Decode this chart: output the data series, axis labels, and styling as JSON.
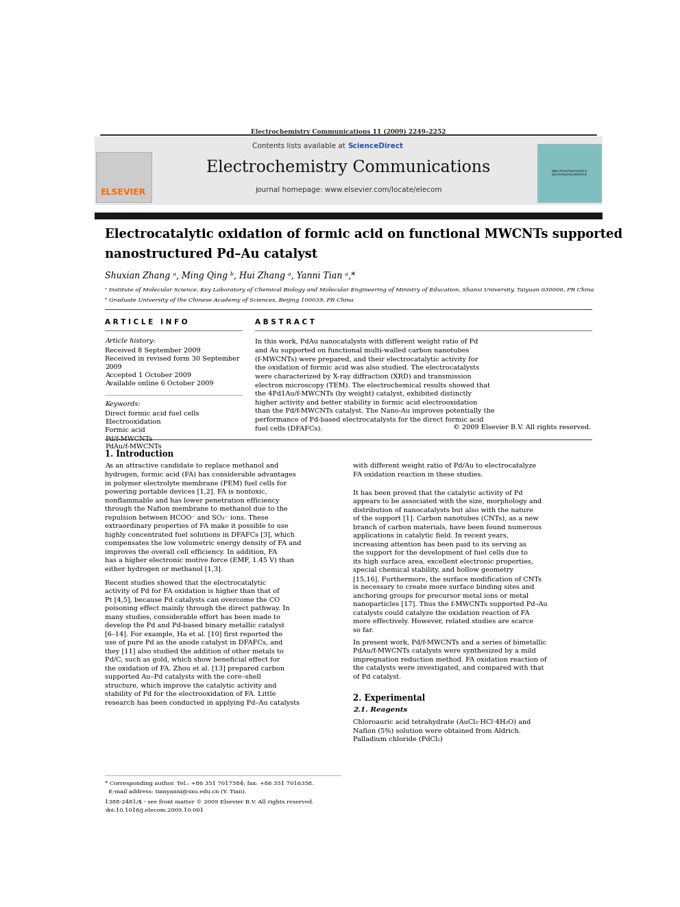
{
  "page_width": 9.92,
  "page_height": 13.23,
  "bg_color": "#ffffff",
  "top_citation": "Electrochemistry Communications 11 (2009) 2249–2252",
  "journal_name": "Electrochemistry Communications",
  "journal_homepage": "journal homepage: www.elsevier.com/locate/elecom",
  "contents_before": "Contents lists available at ",
  "contents_link": "ScienceDirect",
  "sciencedirect_color": "#2255aa",
  "header_bg": "#e8e8e8",
  "elsevier_color": "#ff6600",
  "article_title_line1": "Electrocatalytic oxidation of formic acid on functional MWCNTs supported",
  "article_title_line2": "nanostructured Pd–Au catalyst",
  "authors": "Shuxian Zhang ᵃ, Ming Qing ᵇ, Hui Zhang ᵃ, Yanni Tian ᵃ,*",
  "affil_a": "ᵃ Institute of Molecular Science, Key Laboratory of Chemical Biology and Molecular Engineering of Ministry of Education, Shanxi University, Taiyuan 030006, PR China",
  "affil_b": "ᵇ Graduate University of the Chinese Academy of Sciences, Beijing 100039, PR China",
  "article_info_title": "A R T I C L E   I N F O",
  "article_history_label": "Article history:",
  "article_history_line1": "Received 8 September 2009",
  "article_history_line2": "Received in revised form 30 September",
  "article_history_line3": "2009",
  "article_history_line4": "Accepted 1 October 2009",
  "article_history_line5": "Available online 6 October 2009",
  "keywords_label": "Keywords:",
  "keywords_list": [
    "Direct formic acid fuel cells",
    "Electrooxidation",
    "Formic acid",
    "Pd/f-MWCNTs",
    "PdAu/f-MWCNTs"
  ],
  "abstract_title": "A B S T R A C T",
  "abstract_text": "In this work, PdAu nanocatalysts with different weight ratio of Pd and Au supported on functional multi-walled carbon nanotubes (f-MWCNTs) were prepared, and their electrocatalytic activity for the oxidation of formic acid was also studied. The electrocatalysts were characterized by X-ray diffraction (XRD) and transmission electron microscopy (TEM). The electrochemical results showed that the 4Pd1Au/f-MWCNTs (by weight) catalyst, exhibited distinctly higher activity and better stability in formic acid electrooxidation than the Pd/f-MWCNTs catalyst. The Nano-Au improves potentially the performance of Pd-based electrocatalysts for the direct formic acid fuel cells (DFAFCs).",
  "copyright": "© 2009 Elsevier B.V. All rights reserved.",
  "section1_title": "1. Introduction",
  "intro_col1_p1": "As an attractive candidate to replace methanol and hydrogen, formic acid (FA) has considerable advantages in polymer electrolyte membrane (PEM) fuel cells for powering portable devices [1,2]. FA is nontoxic, nonflammable and has lower penetration efficiency through the Nafion membrane to methanol due to the repulsion between HCOO⁻ and SO₃⁻ ions. These extraordinary properties of FA make it possible to use highly concentrated fuel solutions in DFAFCs [3], which compensates the low volumetric energy density of FA and improves the overall cell efficiency. In addition, FA has a higher electronic motive force (EMF, 1.45 V) than either hydrogen or methanol [1,3].",
  "intro_col1_p2": "Recent studies showed that the electrocatalytic activity of Pd for FA oxidation is higher than that of Pt [4,5], because Pd catalysts can overcome the CO poisoning effect mainly through the direct pathway. In many studies, considerable effort has been made to develop the Pd and Pd-based binary metallic catalyst [6–14]. For example, Ha et al. [10] first reported the use of pure Pd as the anode catalyst in DFAFCs, and they [11] also studied the addition of other metals to Pd/C, such as gold, which show beneficial effect for the oxidation of FA. Zhou et al. [13] prepared carbon supported Au–Pd catalysts with the core–shell structure, which improve the catalytic activity and stability of Pd for the electrooxidation of FA. Little research has been conducted in applying Pd–Au catalysts",
  "intro_col2_p1": "with different weight ratio of Pd/Au to electrocatalyze FA oxidation reaction in these studies.",
  "intro_col2_p2": "It has been proved that the catalytic activity of Pd appears to be associated with the size, morphology and distribution of nanocatalysts but also with the nature of the support [1]. Carbon nanotubes (CNTs), as a new branch of carbon materials, have been found numerous applications in catalytic field. In recent years, increasing attention has been paid to its serving as the support for the development of fuel cells due to its high surface area, excellent electronic properties, special chemical stability, and hollow geometry [15,16]. Furthermore, the surface modification of CNTs is necessary to create more surface binding sites and anchoring groups for precursor metal ions or metal nanoparticles [17]. Thus the f-MWCNTs supported Pd–Au catalysts could catalyze the oxidation reaction of FA more effectively. However, related studies are scarce so far.",
  "intro_col2_p3": "In present work, Pd/f-MWCNTs and a series of bimetallic PdAu/f-MWCNTs catalysts were synthesized by a mild impregnation reduction method. FA oxidation reaction of the catalysts were investigated, and compared with that of Pd catalyst.",
  "section2_title": "2. Experimental",
  "section21_title": "2.1. Reagents",
  "reagents_text": "Chloroauric acid tetrahydrate (AuCl₃·HCl·4H₂O) and Nafion (5%) solution were obtained from Aldrich. Palladium chloride (PdCl₂)",
  "footer_note1": "* Corresponding author. Tel.: +86 351 7017584; fax: +86 351 7016358.",
  "footer_note2": "  E-mail address: tianyanni@sxu.edu.cn (Y. Tian).",
  "footer_issn": "1388-2481/$ - see front matter © 2009 Elsevier B.V. All rights reserved.",
  "footer_doi": "doi:10.1016/j.elecom.2009.10.001",
  "black_bar_color": "#1a1a1a",
  "separator_color": "#000000"
}
